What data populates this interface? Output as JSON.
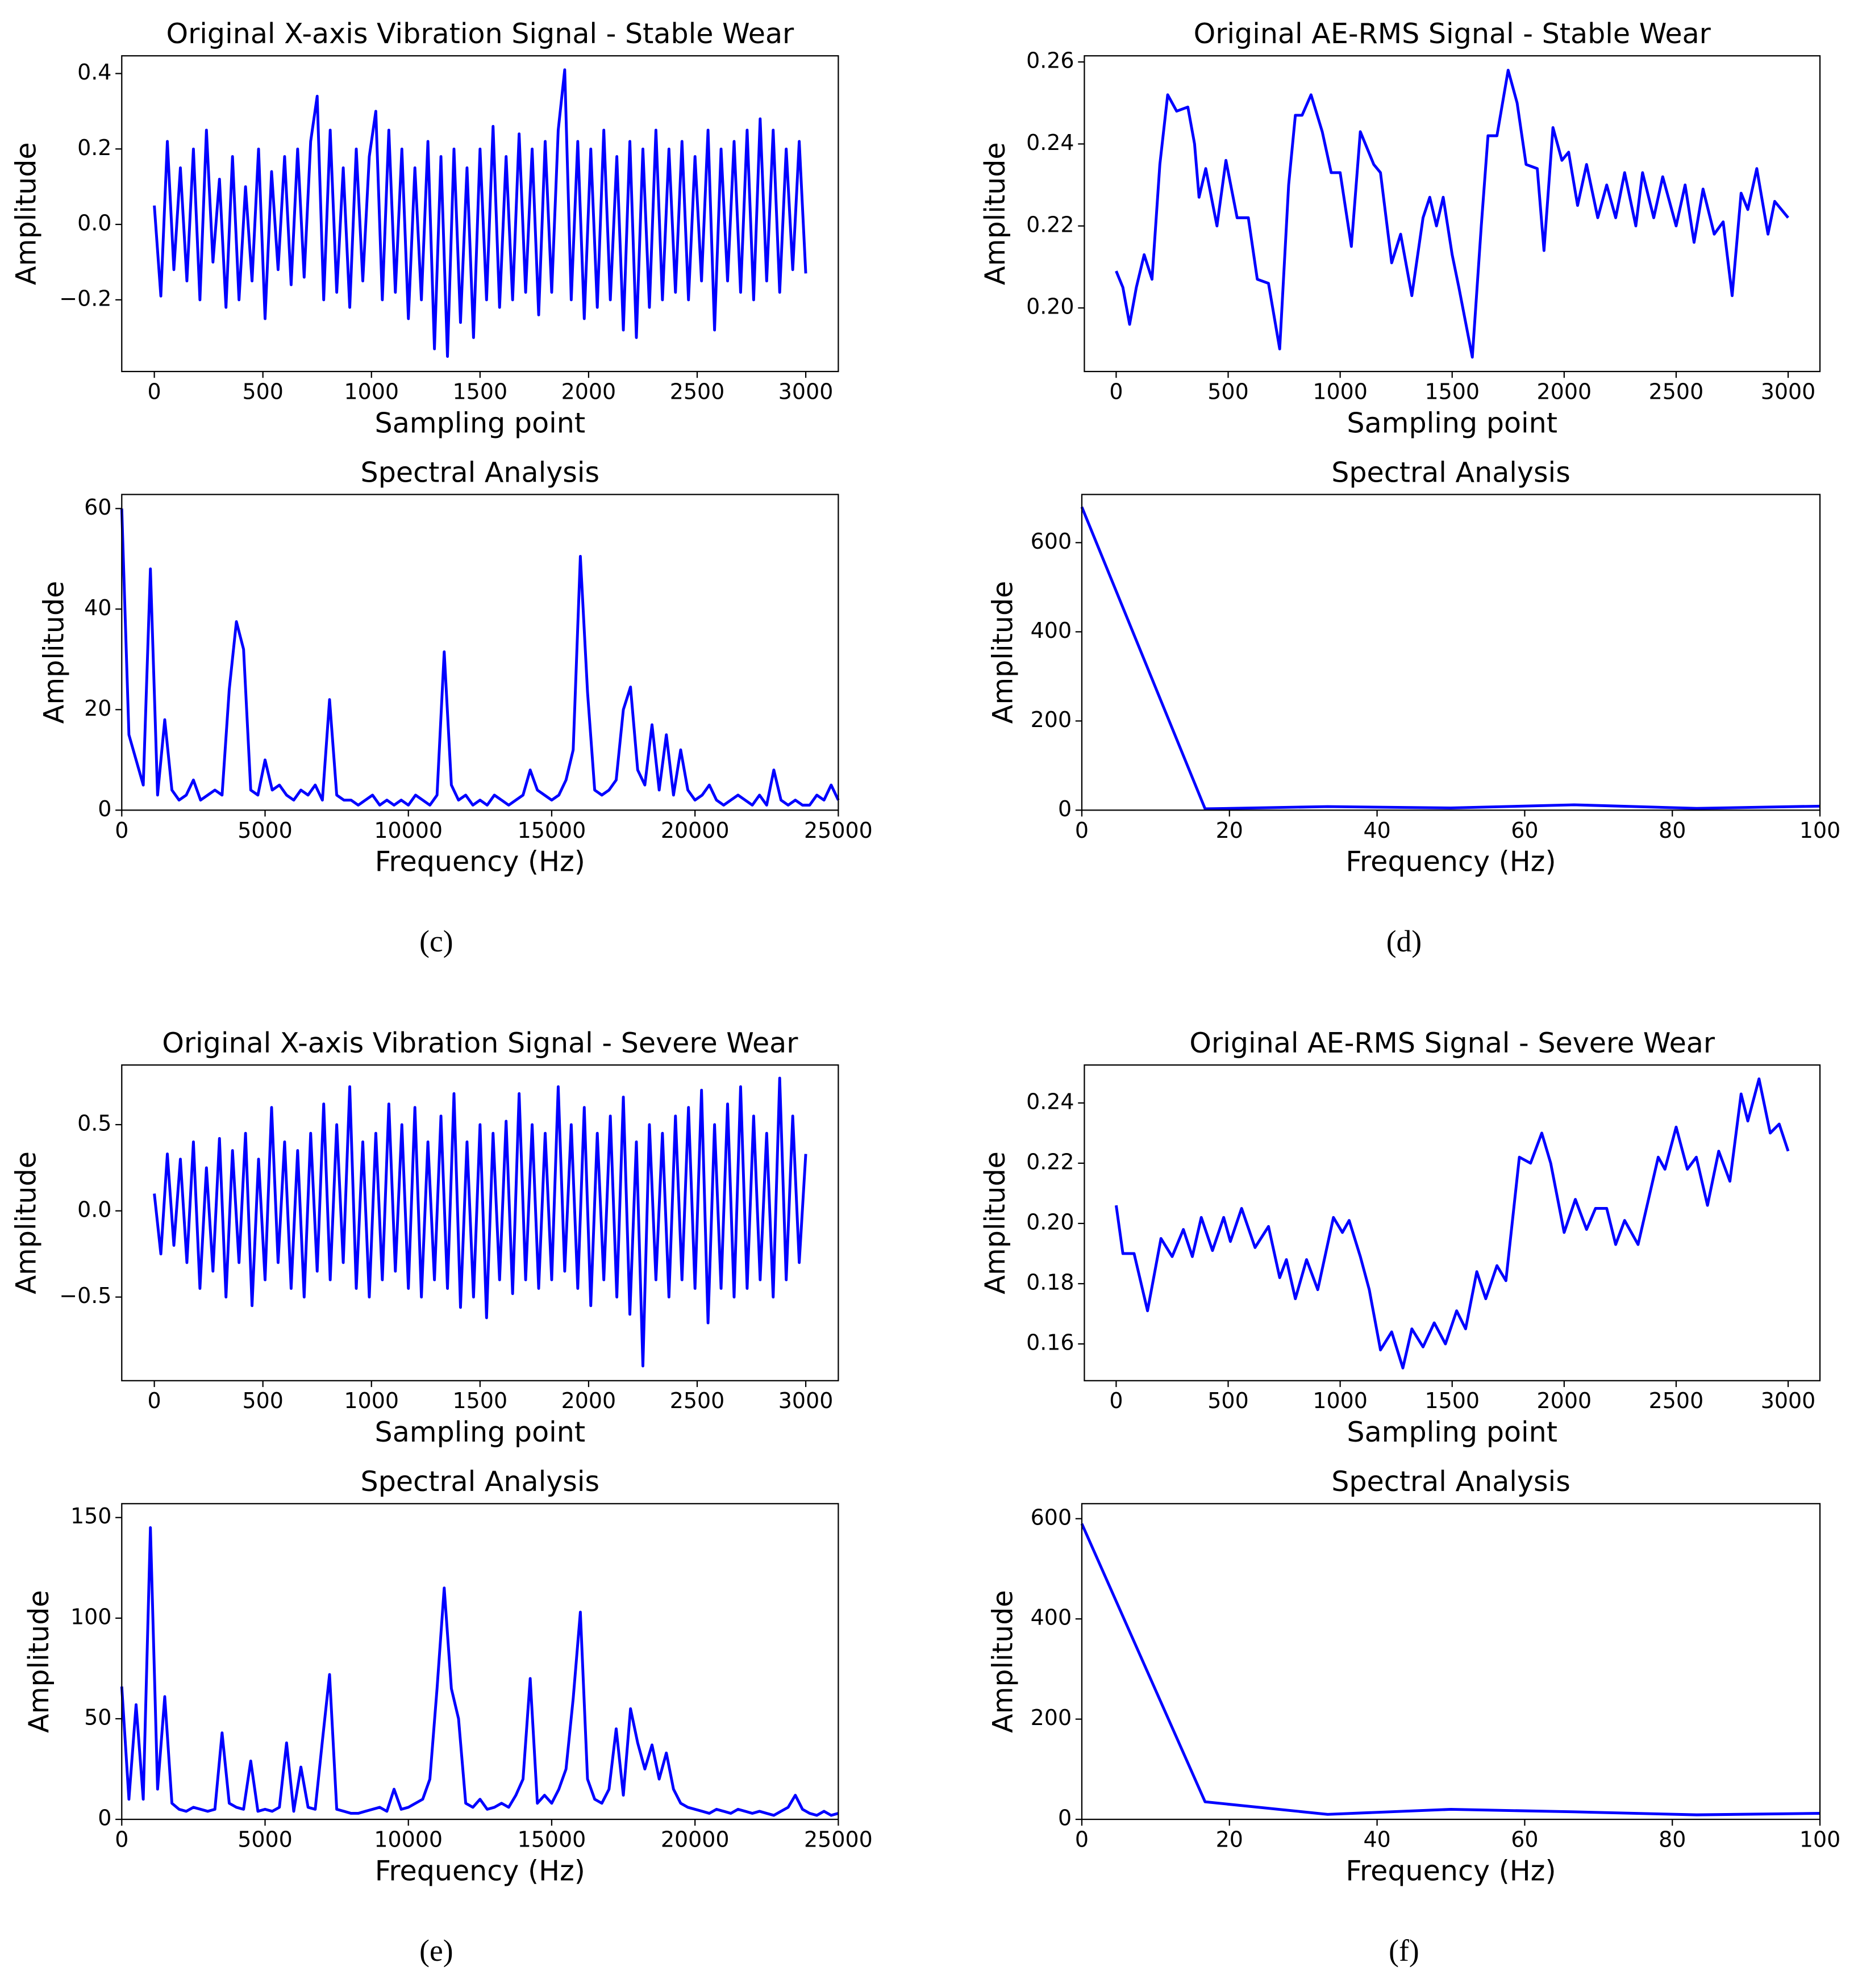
{
  "panel_labels": [
    "(c)",
    "(d)",
    "(e)",
    "(f)"
  ],
  "chart_data": [
    {
      "type": "line",
      "title": "Original X-axis Vibration Signal - Stable Wear",
      "x_label": "Sampling point",
      "y_label": "Amplitude",
      "color": "#0000ff",
      "x": [
        0,
        30,
        60,
        90,
        120,
        150,
        180,
        210,
        240,
        270,
        300,
        330,
        360,
        390,
        420,
        450,
        480,
        510,
        540,
        570,
        600,
        630,
        660,
        690,
        720,
        750,
        780,
        810,
        840,
        870,
        900,
        930,
        960,
        990,
        1020,
        1050,
        1080,
        1110,
        1140,
        1170,
        1200,
        1230,
        1260,
        1290,
        1320,
        1350,
        1380,
        1410,
        1440,
        1470,
        1500,
        1530,
        1560,
        1590,
        1620,
        1650,
        1680,
        1710,
        1740,
        1770,
        1800,
        1830,
        1860,
        1890,
        1920,
        1950,
        1980,
        2010,
        2040,
        2070,
        2100,
        2130,
        2160,
        2190,
        2220,
        2250,
        2280,
        2310,
        2340,
        2370,
        2400,
        2430,
        2460,
        2490,
        2520,
        2550,
        2580,
        2610,
        2640,
        2670,
        2700,
        2730,
        2760,
        2790,
        2820,
        2850,
        2880,
        2910,
        2940,
        2970,
        3000
      ],
      "values": [
        0.05,
        -0.19,
        0.22,
        -0.12,
        0.15,
        -0.15,
        0.2,
        -0.2,
        0.25,
        -0.1,
        0.12,
        -0.22,
        0.18,
        -0.2,
        0.1,
        -0.15,
        0.2,
        -0.25,
        0.14,
        -0.12,
        0.18,
        -0.16,
        0.2,
        -0.14,
        0.22,
        0.34,
        -0.2,
        0.25,
        -0.18,
        0.15,
        -0.22,
        0.2,
        -0.15,
        0.18,
        0.3,
        -0.2,
        0.25,
        -0.18,
        0.2,
        -0.25,
        0.15,
        -0.2,
        0.22,
        -0.33,
        0.18,
        -0.35,
        0.2,
        -0.26,
        0.15,
        -0.3,
        0.2,
        -0.2,
        0.26,
        -0.22,
        0.18,
        -0.2,
        0.24,
        -0.18,
        0.2,
        -0.24,
        0.22,
        -0.18,
        0.25,
        0.41,
        -0.2,
        0.22,
        -0.25,
        0.2,
        -0.22,
        0.25,
        -0.2,
        0.18,
        -0.28,
        0.22,
        -0.3,
        0.2,
        -0.22,
        0.25,
        -0.2,
        0.2,
        -0.18,
        0.22,
        -0.2,
        0.18,
        -0.15,
        0.25,
        -0.28,
        0.2,
        -0.15,
        0.22,
        -0.18,
        0.25,
        -0.2,
        0.28,
        -0.15,
        0.25,
        -0.18,
        0.2,
        -0.12,
        0.22,
        -0.13
      ],
      "xlim": [
        -150,
        3150
      ],
      "xticks": [
        0,
        500,
        1000,
        1500,
        2000,
        2500,
        3000
      ],
      "ylim": [
        -0.39,
        0.447
      ],
      "yticks": [
        {
          "value": -0.2,
          "label": "−0.2"
        },
        {
          "value": 0,
          "label": "0.0"
        },
        0.2,
        0.4
      ]
    },
    {
      "type": "line",
      "title": "Spectral Analysis",
      "x_label": "Frequency (Hz)",
      "y_label": "Amplitude",
      "color": "#0000ff",
      "x": [
        0,
        250,
        500,
        750,
        1000,
        1250,
        1500,
        1750,
        2000,
        2250,
        2500,
        2750,
        3000,
        3250,
        3500,
        3750,
        4000,
        4250,
        4500,
        4750,
        5000,
        5250,
        5500,
        5750,
        6000,
        6250,
        6500,
        6750,
        7000,
        7250,
        7500,
        7750,
        8000,
        8250,
        8500,
        8750,
        9000,
        9250,
        9500,
        9750,
        10000,
        10250,
        10500,
        10750,
        11000,
        11250,
        11500,
        11750,
        12000,
        12250,
        12500,
        12750,
        13000,
        13250,
        13500,
        13750,
        14000,
        14250,
        14500,
        14750,
        15000,
        15250,
        15500,
        15750,
        16000,
        16250,
        16500,
        16750,
        17000,
        17250,
        17500,
        17750,
        18000,
        18250,
        18500,
        18750,
        19000,
        19250,
        19500,
        19750,
        20000,
        20250,
        20500,
        20750,
        21000,
        21250,
        21500,
        21750,
        22000,
        22250,
        22500,
        22750,
        23000,
        23250,
        23500,
        23750,
        24000,
        24250,
        24500,
        24750,
        25000
      ],
      "values": [
        60,
        15,
        10,
        5,
        48,
        3,
        18,
        4,
        2,
        3,
        6,
        2,
        3,
        4,
        3,
        24,
        37.5,
        32,
        4,
        3,
        10,
        4,
        5,
        3,
        2,
        4,
        3,
        5,
        2,
        22,
        3,
        2,
        2,
        1,
        2,
        3,
        1,
        2,
        1,
        2,
        1,
        3,
        2,
        1,
        3,
        31.5,
        5,
        2,
        3,
        1,
        2,
        1,
        3,
        2,
        1,
        2,
        3,
        8,
        4,
        3,
        2,
        3,
        6,
        12,
        50.5,
        23.5,
        4,
        3,
        4,
        6,
        20,
        24.5,
        8,
        5,
        17,
        4,
        15,
        3,
        12,
        4,
        2,
        3,
        5,
        2,
        1,
        2,
        3,
        2,
        1,
        3,
        1,
        8,
        2,
        1,
        2,
        1,
        1,
        3,
        2,
        5,
        2
      ],
      "xlim": [
        0,
        25000
      ],
      "xticks": [
        0,
        5000,
        10000,
        15000,
        20000,
        25000
      ],
      "ylim": [
        0,
        62.8
      ],
      "yticks": [
        0,
        20,
        40,
        60
      ]
    },
    {
      "type": "line",
      "title": "Original AE-RMS Signal - Stable Wear",
      "x_label": "Sampling point",
      "y_label": "Amplitude",
      "color": "#0000ff",
      "x": [
        0,
        30,
        60,
        90,
        125,
        160,
        195,
        230,
        270,
        320,
        350,
        370,
        400,
        450,
        490,
        540,
        590,
        630,
        680,
        730,
        770,
        800,
        830,
        870,
        920,
        960,
        1000,
        1050,
        1090,
        1150,
        1180,
        1230,
        1270,
        1320,
        1370,
        1400,
        1430,
        1460,
        1500,
        1530,
        1590,
        1630,
        1660,
        1700,
        1750,
        1790,
        1830,
        1880,
        1910,
        1950,
        1990,
        2020,
        2060,
        2100,
        2150,
        2190,
        2230,
        2270,
        2320,
        2350,
        2400,
        2440,
        2500,
        2540,
        2580,
        2620,
        2670,
        2710,
        2750,
        2790,
        2820,
        2860,
        2910,
        2940,
        3000
      ],
      "values": [
        0.209,
        0.205,
        0.196,
        0.205,
        0.213,
        0.207,
        0.235,
        0.252,
        0.248,
        0.249,
        0.24,
        0.227,
        0.234,
        0.22,
        0.236,
        0.222,
        0.222,
        0.207,
        0.206,
        0.19,
        0.23,
        0.247,
        0.247,
        0.252,
        0.243,
        0.233,
        0.233,
        0.215,
        0.243,
        0.235,
        0.233,
        0.211,
        0.218,
        0.203,
        0.222,
        0.227,
        0.22,
        0.227,
        0.213,
        0.205,
        0.188,
        0.22,
        0.242,
        0.242,
        0.258,
        0.25,
        0.235,
        0.234,
        0.214,
        0.244,
        0.236,
        0.238,
        0.225,
        0.235,
        0.222,
        0.23,
        0.222,
        0.233,
        0.22,
        0.233,
        0.222,
        0.232,
        0.22,
        0.23,
        0.216,
        0.229,
        0.218,
        0.221,
        0.203,
        0.228,
        0.224,
        0.234,
        0.218,
        0.226,
        0.222
      ],
      "xlim": [
        -142,
        3142
      ],
      "xticks": [
        0,
        500,
        1000,
        1500,
        2000,
        2500,
        3000
      ],
      "ylim": [
        0.1845,
        0.2615
      ],
      "yticks": [
        {
          "value": 0.2,
          "label": "0.20"
        },
        0.22,
        0.24,
        0.26
      ]
    },
    {
      "type": "line",
      "title": "Spectral Analysis",
      "x_label": "Frequency (Hz)",
      "y_label": "Amplitude",
      "color": "#0000ff",
      "x": [
        0,
        16.7,
        33.3,
        50,
        66.7,
        83.3,
        100
      ],
      "values": [
        680,
        3,
        8,
        5,
        12,
        4,
        9
      ],
      "xlim": [
        0,
        100
      ],
      "xticks": [
        0,
        20,
        40,
        60,
        80,
        100
      ],
      "ylim": [
        0,
        708
      ],
      "yticks": [
        0,
        200,
        400,
        600
      ]
    },
    {
      "type": "line",
      "title": "Original X-axis Vibration Signal - Severe Wear",
      "x_label": "Sampling point",
      "y_label": "Amplitude",
      "color": "#0000ff",
      "x": [
        0,
        30,
        60,
        90,
        120,
        150,
        180,
        210,
        240,
        270,
        300,
        330,
        360,
        390,
        420,
        450,
        480,
        510,
        540,
        570,
        600,
        630,
        660,
        690,
        720,
        750,
        780,
        810,
        840,
        870,
        900,
        930,
        960,
        990,
        1020,
        1050,
        1080,
        1110,
        1140,
        1170,
        1200,
        1230,
        1260,
        1290,
        1320,
        1350,
        1380,
        1410,
        1440,
        1470,
        1500,
        1530,
        1560,
        1590,
        1620,
        1650,
        1680,
        1710,
        1740,
        1770,
        1800,
        1830,
        1860,
        1890,
        1920,
        1950,
        1980,
        2010,
        2040,
        2070,
        2100,
        2130,
        2160,
        2190,
        2220,
        2250,
        2280,
        2310,
        2340,
        2370,
        2400,
        2430,
        2460,
        2490,
        2520,
        2550,
        2580,
        2610,
        2640,
        2670,
        2700,
        2730,
        2760,
        2790,
        2820,
        2850,
        2880,
        2910,
        2940,
        2970,
        3000
      ],
      "values": [
        0.1,
        -0.25,
        0.33,
        -0.2,
        0.3,
        -0.3,
        0.4,
        -0.45,
        0.25,
        -0.35,
        0.42,
        -0.5,
        0.35,
        -0.3,
        0.45,
        -0.55,
        0.3,
        -0.4,
        0.6,
        -0.3,
        0.4,
        -0.45,
        0.35,
        -0.5,
        0.45,
        -0.35,
        0.62,
        -0.4,
        0.5,
        -0.3,
        0.72,
        -0.45,
        0.4,
        -0.5,
        0.45,
        -0.4,
        0.62,
        -0.35,
        0.5,
        -0.45,
        0.6,
        -0.5,
        0.4,
        -0.4,
        0.55,
        -0.45,
        0.68,
        -0.56,
        0.4,
        -0.5,
        0.5,
        -0.62,
        0.45,
        -0.4,
        0.52,
        -0.48,
        0.68,
        -0.4,
        0.5,
        -0.45,
        0.45,
        -0.4,
        0.72,
        -0.35,
        0.5,
        -0.45,
        0.6,
        -0.55,
        0.45,
        -0.4,
        0.55,
        -0.5,
        0.66,
        -0.6,
        0.4,
        -0.9,
        0.5,
        -0.4,
        0.45,
        -0.5,
        0.55,
        -0.4,
        0.6,
        -0.45,
        0.7,
        -0.65,
        0.5,
        -0.45,
        0.62,
        -0.5,
        0.72,
        -0.45,
        0.55,
        -0.4,
        0.45,
        -0.5,
        0.77,
        -0.4,
        0.55,
        -0.3,
        0.33
      ],
      "xlim": [
        -150,
        3150
      ],
      "xticks": [
        0,
        500,
        1000,
        1500,
        2000,
        2500,
        3000
      ],
      "ylim": [
        -0.985,
        0.846
      ],
      "yticks": [
        {
          "value": -0.5,
          "label": "−0.5"
        },
        {
          "value": 0,
          "label": "0.0"
        },
        0.5
      ]
    },
    {
      "type": "line",
      "title": "Spectral Analysis",
      "x_label": "Frequency (Hz)",
      "y_label": "Amplitude",
      "color": "#0000ff",
      "x": [
        0,
        250,
        500,
        750,
        1000,
        1250,
        1500,
        1750,
        2000,
        2250,
        2500,
        2750,
        3000,
        3250,
        3500,
        3750,
        4000,
        4250,
        4500,
        4750,
        5000,
        5250,
        5500,
        5750,
        6000,
        6250,
        6500,
        6750,
        7000,
        7250,
        7500,
        7750,
        8000,
        8250,
        8500,
        8750,
        9000,
        9250,
        9500,
        9750,
        10000,
        10250,
        10500,
        10750,
        11000,
        11250,
        11500,
        11750,
        12000,
        12250,
        12500,
        12750,
        13000,
        13250,
        13500,
        13750,
        14000,
        14250,
        14500,
        14750,
        15000,
        15250,
        15500,
        15750,
        16000,
        16250,
        16500,
        16750,
        17000,
        17250,
        17500,
        17750,
        18000,
        18250,
        18500,
        18750,
        19000,
        19250,
        19500,
        19750,
        20000,
        20250,
        20500,
        20750,
        21000,
        21250,
        21500,
        21750,
        22000,
        22250,
        22500,
        22750,
        23000,
        23250,
        23500,
        23750,
        24000,
        24250,
        24500,
        24750,
        25000
      ],
      "values": [
        66,
        10,
        57,
        10,
        145,
        15,
        61,
        8,
        5,
        4,
        6,
        5,
        4,
        5,
        43,
        8,
        6,
        5,
        29,
        4,
        5,
        4,
        6,
        38,
        4,
        26,
        6,
        5,
        39,
        72,
        5,
        4,
        3,
        3,
        4,
        5,
        6,
        4,
        15,
        5,
        6,
        8,
        10,
        20,
        65,
        115,
        65,
        50,
        8,
        6,
        10,
        5,
        6,
        8,
        6,
        12,
        20,
        70,
        8,
        12,
        8,
        15,
        25,
        60,
        103,
        20,
        10,
        8,
        15,
        45,
        12,
        55,
        38,
        25,
        37,
        20,
        33,
        15,
        8,
        6,
        5,
        4,
        3,
        5,
        4,
        3,
        5,
        4,
        3,
        4,
        3,
        2,
        4,
        6,
        12,
        5,
        3,
        2,
        4,
        2,
        3
      ],
      "xlim": [
        0,
        25000
      ],
      "xticks": [
        0,
        5000,
        10000,
        15000,
        20000,
        25000
      ],
      "ylim": [
        0,
        156.9
      ],
      "yticks": [
        0,
        50,
        100,
        150
      ]
    },
    {
      "type": "line",
      "title": "Original AE-RMS Signal - Severe Wear",
      "x_label": "Sampling point",
      "y_label": "Amplitude",
      "color": "#0000ff",
      "x": [
        0,
        30,
        80,
        140,
        200,
        250,
        300,
        340,
        380,
        430,
        480,
        510,
        560,
        620,
        680,
        730,
        760,
        800,
        850,
        900,
        970,
        1010,
        1040,
        1090,
        1130,
        1180,
        1230,
        1280,
        1320,
        1370,
        1420,
        1470,
        1520,
        1560,
        1610,
        1650,
        1700,
        1740,
        1800,
        1850,
        1900,
        1940,
        2000,
        2050,
        2100,
        2140,
        2190,
        2230,
        2270,
        2330,
        2420,
        2450,
        2500,
        2550,
        2590,
        2640,
        2690,
        2740,
        2790,
        2820,
        2870,
        2920,
        2960,
        3000
      ],
      "values": [
        0.206,
        0.19,
        0.19,
        0.171,
        0.195,
        0.189,
        0.198,
        0.189,
        0.202,
        0.191,
        0.202,
        0.194,
        0.205,
        0.192,
        0.199,
        0.182,
        0.188,
        0.175,
        0.188,
        0.178,
        0.202,
        0.197,
        0.201,
        0.189,
        0.178,
        0.158,
        0.164,
        0.152,
        0.165,
        0.159,
        0.167,
        0.16,
        0.171,
        0.165,
        0.184,
        0.175,
        0.186,
        0.181,
        0.222,
        0.22,
        0.23,
        0.22,
        0.197,
        0.208,
        0.198,
        0.205,
        0.205,
        0.193,
        0.201,
        0.193,
        0.222,
        0.218,
        0.232,
        0.218,
        0.222,
        0.206,
        0.224,
        0.214,
        0.243,
        0.234,
        0.248,
        0.23,
        0.233,
        0.224
      ],
      "xlim": [
        -142,
        3142
      ],
      "xticks": [
        0,
        500,
        1000,
        1500,
        2000,
        2500,
        3000
      ],
      "ylim": [
        0.1478,
        0.2526
      ],
      "yticks": [
        0.16,
        0.18,
        {
          "value": 0.2,
          "label": "0.20"
        },
        0.22,
        0.24
      ]
    },
    {
      "type": "line",
      "title": "Spectral Analysis",
      "x_label": "Frequency (Hz)",
      "y_label": "Amplitude",
      "color": "#0000ff",
      "x": [
        0,
        16.7,
        33.3,
        50,
        66.7,
        83.3,
        100
      ],
      "values": [
        590,
        35,
        10,
        20,
        15,
        9,
        12
      ],
      "xlim": [
        0,
        100
      ],
      "xticks": [
        0,
        20,
        40,
        60,
        80,
        100
      ],
      "ylim": [
        0,
        630
      ],
      "yticks": [
        0,
        200,
        400,
        600
      ]
    }
  ]
}
